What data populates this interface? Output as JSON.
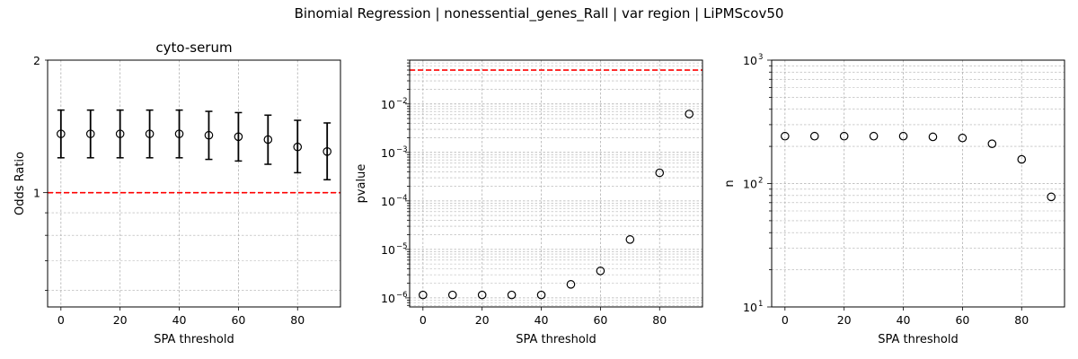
{
  "suptitle": "Binomial Regression | nonessential_genes_Rall | var region | LiPMScov50",
  "chart_data": [
    {
      "type": "scatter",
      "title": "cyto-serum",
      "xlabel": "SPA threshold",
      "ylabel": "Odds Ratio",
      "yscale": "log",
      "xlim": [
        -4.5,
        94.5
      ],
      "ylim": [
        0.55,
        2.0
      ],
      "xticks": [
        0,
        20,
        40,
        60,
        80
      ],
      "xtick_labels": [
        "0",
        "20",
        "40",
        "60",
        "80"
      ],
      "yticks": [
        1,
        2
      ],
      "ytick_labels": [
        "1",
        "2"
      ],
      "grid": true,
      "reference_line": {
        "y": 1.0,
        "color": "#ff0000",
        "style": "dashed"
      },
      "x": [
        0,
        10,
        20,
        30,
        40,
        50,
        60,
        70,
        80,
        90
      ],
      "y": [
        1.36,
        1.36,
        1.36,
        1.36,
        1.36,
        1.35,
        1.34,
        1.32,
        1.27,
        1.24
      ],
      "err_low": [
        1.2,
        1.2,
        1.2,
        1.2,
        1.2,
        1.19,
        1.18,
        1.16,
        1.11,
        1.07
      ],
      "err_high": [
        1.54,
        1.54,
        1.54,
        1.54,
        1.54,
        1.53,
        1.52,
        1.5,
        1.46,
        1.44
      ]
    },
    {
      "type": "scatter",
      "title": "",
      "xlabel": "SPA threshold",
      "ylabel": "pvalue",
      "yscale": "log",
      "xlim": [
        -4.5,
        94.5
      ],
      "ylim": [
        6.5e-07,
        0.08
      ],
      "xticks": [
        0,
        20,
        40,
        60,
        80
      ],
      "xtick_labels": [
        "0",
        "20",
        "40",
        "60",
        "80"
      ],
      "yticks": [
        1e-06,
        1e-05,
        0.0001,
        0.001,
        0.01
      ],
      "ytick_labels": [
        [
          "10",
          "−6"
        ],
        [
          "10",
          "−5"
        ],
        [
          "10",
          "−4"
        ],
        [
          "10",
          "−3"
        ],
        [
          "10",
          "−2"
        ]
      ],
      "grid": true,
      "reference_line": {
        "y": 0.05,
        "color": "#ff0000",
        "style": "dashed"
      },
      "x": [
        0,
        10,
        20,
        30,
        40,
        50,
        60,
        70,
        80,
        90
      ],
      "y": [
        1.15e-06,
        1.15e-06,
        1.15e-06,
        1.15e-06,
        1.15e-06,
        1.9e-06,
        3.6e-06,
        1.6e-05,
        0.00038,
        0.0062
      ]
    },
    {
      "type": "scatter",
      "title": "",
      "xlabel": "SPA threshold",
      "ylabel": "n",
      "yscale": "log",
      "xlim": [
        -4.5,
        94.5
      ],
      "ylim": [
        10,
        1000
      ],
      "xticks": [
        0,
        20,
        40,
        60,
        80
      ],
      "xtick_labels": [
        "0",
        "20",
        "40",
        "60",
        "80"
      ],
      "yticks": [
        10,
        100,
        1000
      ],
      "ytick_labels": [
        [
          "10",
          "1"
        ],
        [
          "10",
          "2"
        ],
        [
          "10",
          "3"
        ]
      ],
      "grid": true,
      "x": [
        0,
        10,
        20,
        30,
        40,
        50,
        60,
        70,
        80,
        90
      ],
      "y": [
        242,
        242,
        242,
        242,
        242,
        239,
        234,
        210,
        157,
        78
      ]
    }
  ]
}
